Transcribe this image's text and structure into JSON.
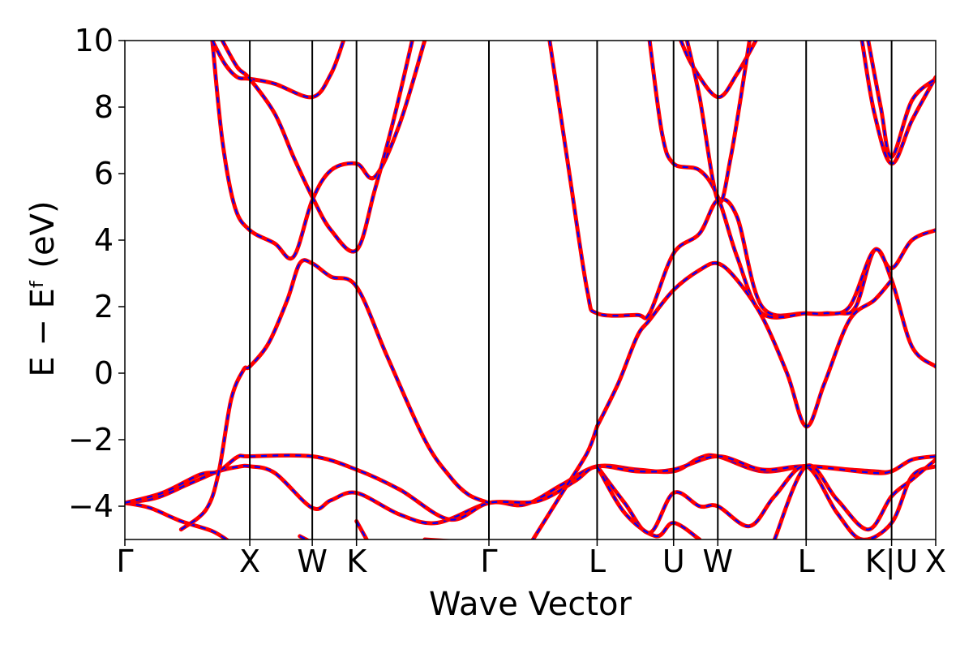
{
  "chart_data": {
    "type": "line",
    "title": "",
    "xlabel": "Wave Vector",
    "ylabel": "E − Eᶠ (eV)",
    "ylim": [
      -5,
      10
    ],
    "yticks": [
      -4,
      -2,
      0,
      2,
      4,
      6,
      8,
      10
    ],
    "ytick_labels": [
      "−4",
      "−2",
      "0",
      "2",
      "4",
      "6",
      "8",
      "10"
    ],
    "xlim": [
      0,
      6.49
    ],
    "kpoints": [
      {
        "label": "Γ",
        "x": 0.0
      },
      {
        "label": "X",
        "x": 1.0
      },
      {
        "label": "W",
        "x": 1.5
      },
      {
        "label": "K",
        "x": 1.854
      },
      {
        "label": "Γ",
        "x": 2.914
      },
      {
        "label": "L",
        "x": 3.78
      },
      {
        "label": "U",
        "x": 4.392
      },
      {
        "label": "W",
        "x": 4.746
      },
      {
        "label": "L",
        "x": 5.453
      },
      {
        "label": "K|U",
        "x": 6.137
      },
      {
        "label": "X",
        "x": 6.49
      }
    ],
    "grid": false,
    "styles": {
      "outer_color": "#ff0000",
      "inner_color": "#0000ff",
      "inner_dash": "dashed"
    },
    "series": [
      {
        "values": [
          [
            0.0,
            -3.9
          ],
          [
            0.2,
            -4.05
          ],
          [
            0.45,
            -4.45
          ],
          [
            0.7,
            -4.75
          ],
          [
            0.85,
            -5.1
          ]
        ]
      },
      {
        "values": [
          [
            0.0,
            -3.9
          ],
          [
            0.25,
            -3.75
          ],
          [
            0.5,
            -3.35
          ],
          [
            0.75,
            -2.95
          ],
          [
            0.9,
            -2.82
          ],
          [
            1.0,
            -2.8
          ],
          [
            1.2,
            -3.0
          ],
          [
            1.5,
            -4.05
          ],
          [
            1.65,
            -3.82
          ],
          [
            1.854,
            -3.6
          ],
          [
            2.2,
            -4.25
          ],
          [
            2.5,
            -4.5
          ],
          [
            2.914,
            -3.9
          ],
          [
            3.2,
            -3.95
          ],
          [
            3.5,
            -3.35
          ],
          [
            3.78,
            -2.8
          ],
          [
            4.1,
            -2.9
          ],
          [
            4.392,
            -2.95
          ],
          [
            4.6,
            -2.55
          ],
          [
            4.746,
            -2.5
          ],
          [
            5.1,
            -2.95
          ],
          [
            5.453,
            -2.8
          ],
          [
            5.8,
            -2.9
          ],
          [
            6.0,
            -2.95
          ],
          [
            6.137,
            -2.95
          ],
          [
            6.3,
            -2.6
          ],
          [
            6.49,
            -2.5
          ]
        ]
      },
      {
        "values": [
          [
            0.0,
            -3.9
          ],
          [
            0.3,
            -3.6
          ],
          [
            0.6,
            -3.05
          ],
          [
            0.75,
            -2.95
          ],
          [
            0.9,
            -2.52
          ],
          [
            1.0,
            -2.5
          ],
          [
            1.5,
            -2.5
          ],
          [
            1.854,
            -2.9
          ],
          [
            2.2,
            -3.5
          ],
          [
            2.6,
            -4.4
          ],
          [
            2.914,
            -3.9
          ],
          [
            3.3,
            -3.85
          ],
          [
            3.6,
            -3.25
          ],
          [
            3.78,
            -2.8
          ],
          [
            4.1,
            -2.95
          ],
          [
            4.392,
            -2.9
          ],
          [
            4.746,
            -2.5
          ],
          [
            5.1,
            -2.9
          ],
          [
            5.453,
            -2.8
          ],
          [
            6.0,
            -3.0
          ],
          [
            6.137,
            -2.95
          ]
        ]
      },
      {
        "values": [
          [
            0.45,
            -4.7
          ],
          [
            0.65,
            -4.1
          ],
          [
            0.75,
            -3.0
          ],
          [
            0.85,
            -0.8
          ],
          [
            0.95,
            0.1
          ],
          [
            1.0,
            0.2
          ],
          [
            1.15,
            0.9
          ],
          [
            1.3,
            2.2
          ],
          [
            1.4,
            3.3
          ],
          [
            1.5,
            3.3
          ],
          [
            1.65,
            2.9
          ],
          [
            1.854,
            2.6
          ],
          [
            2.1,
            0.5
          ],
          [
            2.4,
            -2.0
          ],
          [
            2.6,
            -3.1
          ],
          [
            2.75,
            -3.65
          ],
          [
            2.914,
            -3.9
          ]
        ]
      },
      {
        "values": [
          [
            0.7,
            10.0
          ],
          [
            0.78,
            7.0
          ],
          [
            0.88,
            5.0
          ],
          [
            1.0,
            4.3
          ],
          [
            1.2,
            3.9
          ],
          [
            1.35,
            3.5
          ],
          [
            1.5,
            5.2
          ],
          [
            1.65,
            6.1
          ],
          [
            1.854,
            6.3
          ],
          [
            2.0,
            5.9
          ],
          [
            2.2,
            7.5
          ],
          [
            2.4,
            10.0
          ]
        ]
      },
      {
        "values": [
          [
            0.7,
            10.0
          ],
          [
            0.8,
            9.3
          ],
          [
            0.9,
            8.9
          ],
          [
            1.0,
            8.85
          ],
          [
            1.2,
            8.7
          ],
          [
            1.5,
            8.3
          ],
          [
            1.65,
            9.0
          ],
          [
            1.75,
            10.0
          ]
        ]
      },
      {
        "values": [
          [
            0.78,
            10.0
          ],
          [
            0.9,
            9.2
          ],
          [
            1.0,
            8.85
          ],
          [
            1.2,
            7.8
          ],
          [
            1.35,
            6.5
          ],
          [
            1.5,
            5.3
          ],
          [
            1.65,
            4.3
          ],
          [
            1.854,
            3.7
          ],
          [
            2.0,
            5.5
          ],
          [
            2.15,
            7.6
          ],
          [
            2.3,
            10.0
          ]
        ]
      },
      {
        "values": [
          [
            3.4,
            10.0
          ],
          [
            3.55,
            6.2
          ],
          [
            3.7,
            2.5
          ],
          [
            3.78,
            1.8
          ],
          [
            4.1,
            1.75
          ],
          [
            4.2,
            1.8
          ],
          [
            4.392,
            3.6
          ],
          [
            4.6,
            4.2
          ],
          [
            4.746,
            5.2
          ],
          [
            4.9,
            4.7
          ],
          [
            5.1,
            2.0
          ],
          [
            5.453,
            1.8
          ],
          [
            5.7,
            1.8
          ],
          [
            5.85,
            2.0
          ],
          [
            6.0,
            3.7
          ],
          [
            6.137,
            3.15
          ],
          [
            6.3,
            4.0
          ],
          [
            6.49,
            4.3
          ]
        ]
      },
      {
        "values": [
          [
            4.2,
            10.0
          ],
          [
            4.3,
            7.2
          ],
          [
            4.392,
            6.3
          ],
          [
            4.6,
            6.1
          ],
          [
            4.746,
            5.3
          ],
          [
            4.9,
            3.5
          ],
          [
            5.1,
            1.8
          ],
          [
            5.453,
            1.8
          ],
          [
            5.6,
            1.8
          ],
          [
            5.8,
            2.0
          ],
          [
            6.0,
            3.7
          ],
          [
            6.137,
            2.8
          ],
          [
            6.3,
            0.8
          ],
          [
            6.49,
            0.2
          ]
        ]
      },
      {
        "values": [
          [
            3.78,
            -1.6
          ],
          [
            3.95,
            -0.3
          ],
          [
            4.1,
            1.1
          ],
          [
            4.2,
            1.6
          ],
          [
            4.392,
            2.5
          ],
          [
            4.6,
            3.1
          ],
          [
            4.746,
            3.3
          ],
          [
            4.9,
            2.8
          ],
          [
            5.1,
            1.7
          ],
          [
            5.3,
            0.0
          ],
          [
            5.453,
            -1.6
          ],
          [
            5.6,
            -0.3
          ],
          [
            5.8,
            1.6
          ],
          [
            6.0,
            2.2
          ],
          [
            6.137,
            2.8
          ]
        ]
      },
      {
        "values": [
          [
            3.25,
            -5.1
          ],
          [
            3.5,
            -3.6
          ],
          [
            3.7,
            -2.4
          ],
          [
            3.78,
            -1.6
          ]
        ]
      },
      {
        "values": [
          [
            4.45,
            10.0
          ],
          [
            4.55,
            9.2
          ],
          [
            4.746,
            8.3
          ],
          [
            4.9,
            9.0
          ],
          [
            5.05,
            10.0
          ]
        ]
      },
      {
        "values": [
          [
            4.5,
            10.0
          ],
          [
            4.6,
            8.3
          ],
          [
            4.746,
            5.2
          ],
          [
            4.85,
            6.5
          ],
          [
            5.0,
            10.0
          ]
        ]
      },
      {
        "values": [
          [
            5.9,
            10.0
          ],
          [
            6.0,
            7.8
          ],
          [
            6.137,
            6.3
          ],
          [
            6.3,
            7.6
          ],
          [
            6.49,
            8.9
          ]
        ]
      },
      {
        "values": [
          [
            5.95,
            10.0
          ],
          [
            6.05,
            8.0
          ],
          [
            6.137,
            6.5
          ],
          [
            6.3,
            8.2
          ],
          [
            6.49,
            8.85
          ]
        ]
      },
      {
        "values": [
          [
            3.78,
            -2.8
          ],
          [
            4.0,
            -3.9
          ],
          [
            4.2,
            -4.8
          ],
          [
            4.392,
            -3.6
          ],
          [
            4.6,
            -4.0
          ],
          [
            4.746,
            -4.0
          ],
          [
            5.0,
            -4.6
          ],
          [
            5.2,
            -3.7
          ],
          [
            5.453,
            -2.8
          ],
          [
            5.7,
            -4.2
          ],
          [
            5.9,
            -5.0
          ],
          [
            6.137,
            -4.5
          ],
          [
            6.3,
            -3.1
          ],
          [
            6.49,
            -2.8
          ]
        ]
      },
      {
        "values": [
          [
            3.78,
            -2.8
          ],
          [
            4.0,
            -4.2
          ],
          [
            4.25,
            -4.9
          ],
          [
            4.392,
            -4.5
          ],
          [
            4.6,
            -5.0
          ]
        ]
      },
      {
        "values": [
          [
            5.2,
            -5.0
          ],
          [
            5.453,
            -2.8
          ],
          [
            5.7,
            -3.8
          ],
          [
            5.95,
            -4.7
          ],
          [
            6.137,
            -3.7
          ],
          [
            6.3,
            -3.2
          ],
          [
            6.49,
            -2.6
          ]
        ]
      },
      {
        "values": [
          [
            1.854,
            -4.45
          ],
          [
            1.95,
            -5.1
          ]
        ]
      },
      {
        "values": [
          [
            1.4,
            -4.9
          ],
          [
            1.5,
            -5.1
          ]
        ]
      },
      {
        "values": [
          [
            2.4,
            -5.0
          ],
          [
            2.6,
            -5.05
          ]
        ]
      }
    ]
  }
}
